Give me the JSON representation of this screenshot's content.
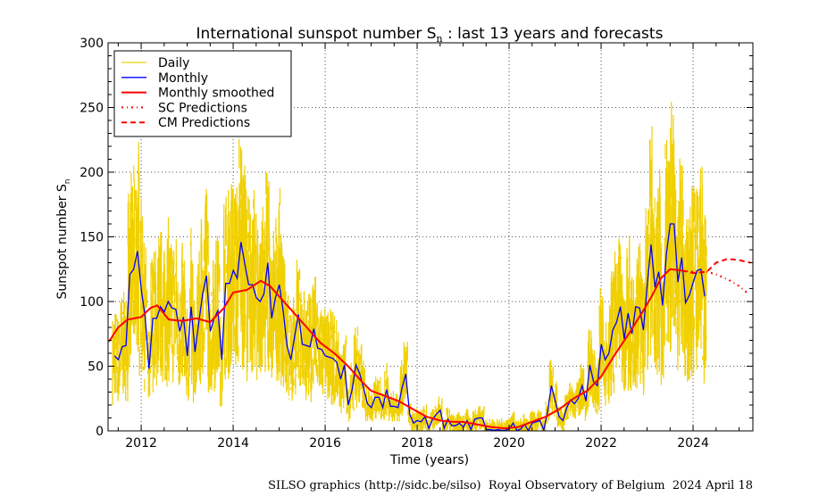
{
  "chart_data": {
    "type": "line",
    "title": {
      "prefix": "International sunspot number S",
      "subscript": "n",
      "suffix": " : last 13 years and forecasts"
    },
    "xlabel": "Time (years)",
    "ylabel": {
      "prefix": "Sunspot number S",
      "subscript": "n"
    },
    "xlim": [
      2011.28,
      2025.3
    ],
    "ylim": [
      0,
      300
    ],
    "xticks": [
      2012,
      2014,
      2016,
      2018,
      2020,
      2022,
      2024
    ],
    "yticks": [
      0,
      50,
      100,
      150,
      200,
      250,
      300
    ],
    "grid": true,
    "legend_position": "top-left",
    "legend": [
      "Daily",
      "Monthly",
      "Monthly smoothed",
      "SC Predictions",
      "CM Predictions"
    ],
    "colors": {
      "daily": "#f0d000",
      "monthly": "#0000ff",
      "smoothed": "#ff0000",
      "predictions": "#ff0000"
    },
    "series": [
      {
        "name": "Monthly",
        "start": 2011.42,
        "step_months": 1,
        "values": [
          58,
          55,
          65,
          66,
          121,
          125,
          139,
          109,
          88,
          48,
          87,
          87,
          96,
          92,
          100,
          95,
          94,
          77,
          88,
          58,
          96,
          61,
          84,
          106,
          120,
          77,
          87,
          93,
          55,
          114,
          114,
          124,
          118,
          146,
          129,
          113,
          113,
          103,
          100,
          106,
          130,
          87,
          103,
          113,
          93,
          66,
          55,
          73,
          90,
          67,
          66,
          65,
          79,
          64,
          63,
          58,
          57,
          56,
          53,
          40,
          51,
          20,
          32,
          51,
          44,
          33,
          21,
          18,
          26,
          26,
          18,
          32,
          19,
          19,
          18,
          33,
          44,
          13,
          6,
          8,
          7,
          11,
          2,
          9,
          13,
          16,
          2,
          9,
          4,
          4,
          6,
          3,
          8,
          1,
          9,
          10,
          10,
          1,
          1,
          0.5,
          1,
          0.4,
          0.5,
          1.5,
          6,
          0.2,
          1.5,
          5,
          0.2,
          6,
          7,
          8,
          0.6,
          15,
          35,
          23,
          11,
          8,
          18,
          24,
          21,
          25,
          35,
          23,
          51,
          38,
          35,
          67,
          55,
          60,
          78,
          84,
          96,
          71,
          91,
          75,
          96,
          95,
          78,
          113,
          144,
          111,
          123,
          97,
          137,
          160,
          160,
          115,
          134,
          99,
          105,
          115,
          124,
          125,
          104
        ]
      },
      {
        "name": "Monthly smoothed",
        "x": [
          2011.3,
          2011.5,
          2011.7,
          2012.0,
          2012.2,
          2012.35,
          2012.6,
          2012.9,
          2013.2,
          2013.5,
          2013.8,
          2014.0,
          2014.3,
          2014.6,
          2014.8,
          2015.0,
          2015.3,
          2015.6,
          2015.9,
          2016.2,
          2016.5,
          2016.8,
          2017.0,
          2017.3,
          2017.6,
          2017.9,
          2018.2,
          2018.5,
          2018.8,
          2019.0,
          2019.3,
          2019.6,
          2019.9,
          2020.2,
          2020.5,
          2020.8,
          2021.1,
          2021.4,
          2021.7,
          2022.0,
          2022.3,
          2022.6,
          2022.9,
          2023.1,
          2023.3,
          2023.5,
          2023.75
        ],
        "y": [
          69,
          80,
          86,
          88,
          95,
          97,
          86,
          85,
          87,
          84,
          95,
          107,
          109,
          116,
          112,
          104,
          92,
          80,
          68,
          60,
          50,
          38,
          31,
          27,
          23,
          17,
          11,
          8,
          7,
          7,
          5,
          3,
          2,
          3,
          7,
          11,
          17,
          25,
          31,
          42,
          59,
          75,
          92,
          104,
          118,
          125,
          124
        ]
      },
      {
        "name": "SC Predictions",
        "x": [
          2023.75,
          2024.0,
          2024.3,
          2024.5,
          2024.76,
          2025.0,
          2025.2
        ],
        "y": [
          124,
          123,
          123,
          121,
          117,
          112,
          106
        ]
      },
      {
        "name": "CM Predictions",
        "x": [
          2023.75,
          2024.0,
          2024.3,
          2024.5,
          2024.75,
          2025.0,
          2025.25
        ],
        "y": [
          124,
          122,
          123,
          130,
          133,
          132,
          130
        ]
      }
    ]
  },
  "footer": "SILSO graphics (http://sidc.be/silso)  Royal Observatory of Belgium  2024 April 18"
}
